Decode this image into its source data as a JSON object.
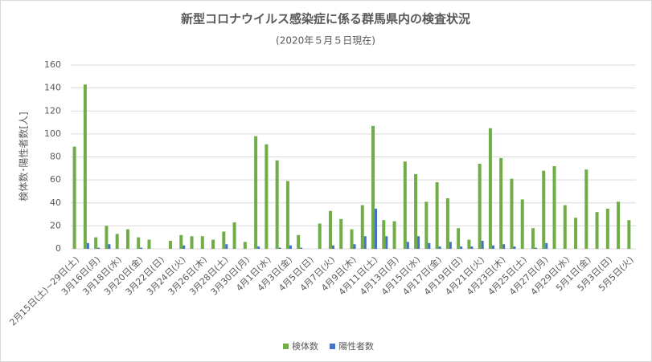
{
  "chart_data": {
    "type": "bar",
    "title": "新型コロナウイルス感染症に係る群馬県内の検査状況",
    "subtitle": "(2020年５月５日現在)",
    "y_label": "検体数･陽性者数[人]",
    "categories": [
      "2月15日(土)~29日(土)",
      null,
      "3月16日(月)",
      null,
      "3月18日(水)",
      null,
      "3月20日(金)",
      null,
      "3月22日(日)",
      null,
      "3月24日(火)",
      null,
      "3月26日(木)",
      null,
      "3月28日(土)",
      null,
      "3月30日(月)",
      null,
      "4月1日(水)",
      null,
      "4月3日(金)",
      null,
      "4月5日(日)",
      null,
      "4月7日(火)",
      null,
      "4月9日(木)",
      null,
      "4月11日(土)",
      null,
      "4月13日(月)",
      null,
      "4月15日(水)",
      null,
      "4月17日(金)",
      null,
      "4月19日(日)",
      null,
      "4月21日(火)",
      null,
      "4月23日(木)",
      null,
      "4月25日(土)",
      null,
      "4月27日(月)",
      null,
      "4月29日(水)",
      null,
      "5月1日(金)",
      null,
      "5月3日(日)",
      null,
      "5月5日(火)"
    ],
    "series": [
      {
        "name": "検体数",
        "color": "#70ad47",
        "values": [
          89,
          143,
          10,
          20,
          13,
          17,
          10,
          8,
          0,
          7,
          12,
          11,
          11,
          8,
          15,
          23,
          6,
          98,
          91,
          77,
          59,
          12,
          0,
          22,
          33,
          26,
          17,
          38,
          107,
          25,
          24,
          76,
          65,
          41,
          58,
          44,
          18,
          8,
          74,
          105,
          79,
          61,
          43,
          18,
          68,
          72,
          38,
          27,
          69,
          32,
          35,
          41,
          25
        ]
      },
      {
        "name": "陽性者数",
        "color": "#4472c4",
        "values": [
          0,
          5,
          1,
          4,
          0,
          0,
          1,
          0,
          0,
          0,
          3,
          0,
          0,
          0,
          4,
          0,
          0,
          2,
          0,
          1,
          3,
          1,
          0,
          0,
          3,
          0,
          4,
          11,
          35,
          11,
          0,
          6,
          11,
          5,
          2,
          6,
          2,
          2,
          7,
          3,
          4,
          2,
          0,
          1,
          5,
          0,
          0,
          0,
          0,
          0,
          0,
          0,
          0
        ]
      }
    ],
    "ylim": [
      0,
      160
    ],
    "yticks": [
      0,
      20,
      40,
      60,
      80,
      100,
      120,
      140,
      160
    ],
    "grid": true,
    "legend": "bottom"
  }
}
